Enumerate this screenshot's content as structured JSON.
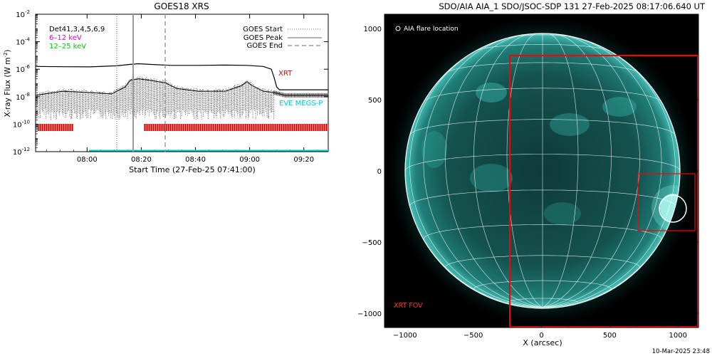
{
  "chart_data": [
    {
      "type": "line",
      "title": "GOES18 XRS",
      "xlabel": "Start Time (27-Feb-25 07:41:00)",
      "ylabel": "X-ray Flux (W m",
      "ylabel_sup": "-2",
      "ylabel_end": ")",
      "log_y": true,
      "xlim_minutes": [
        0,
        108
      ],
      "ylim_exponent": [
        -12,
        -2
      ],
      "x_ticks": [
        {
          "minute": 19,
          "label": "08:00"
        },
        {
          "minute": 39,
          "label": "08:20"
        },
        {
          "minute": 59,
          "label": "08:40"
        },
        {
          "minute": 79,
          "label": "09:00"
        },
        {
          "minute": 99,
          "label": "09:20"
        }
      ],
      "y_ticks": [
        {
          "exp": -2,
          "label": "10",
          "sup": "-2"
        },
        {
          "exp": -4,
          "label": "10",
          "sup": "-4"
        },
        {
          "exp": -6,
          "label": "10",
          "sup": "-6"
        },
        {
          "exp": -8,
          "label": "10",
          "sup": "-8"
        },
        {
          "exp": -10,
          "label": "10",
          "sup": "-10"
        },
        {
          "exp": -12,
          "label": "10",
          "sup": "-12"
        }
      ],
      "legend_left": [
        {
          "label": "Det41,3,4,5,6,9",
          "color": "#000000"
        },
        {
          "label": "6–12 keV",
          "color": "#dd00dd"
        },
        {
          "label": "12–25 keV",
          "color": "#00cc00"
        }
      ],
      "legend_right": [
        {
          "label": "GOES Start",
          "style": "dotted"
        },
        {
          "label": "GOES Peak",
          "style": "solid"
        },
        {
          "label": "GOES End",
          "style": "dashed"
        }
      ],
      "annotations": [
        {
          "label": "XRT",
          "color": "#dd0000"
        },
        {
          "label": "EVE MEGS-P",
          "color": "#00cccc"
        }
      ],
      "event_lines": [
        {
          "name": "GOES Start",
          "minute": 29.5
        },
        {
          "name": "GOES Peak",
          "minute": 37
        },
        {
          "name": "GOES End",
          "minute": 49
        }
      ],
      "series": [
        {
          "name": "GOES long channel",
          "color": "#000000",
          "points": [
            [
              0,
              -5.8
            ],
            [
              10,
              -5.82
            ],
            [
              20,
              -5.83
            ],
            [
              30,
              -5.75
            ],
            [
              35,
              -5.65
            ],
            [
              38,
              -5.6
            ],
            [
              42,
              -5.65
            ],
            [
              50,
              -5.72
            ],
            [
              60,
              -5.72
            ],
            [
              70,
              -5.7
            ],
            [
              78,
              -5.72
            ],
            [
              84,
              -5.8
            ],
            [
              87,
              -6.0
            ],
            [
              88,
              -6.6
            ],
            [
              89,
              -7.3
            ],
            [
              90,
              -7.5
            ],
            [
              100,
              -7.5
            ],
            [
              108,
              -7.5
            ]
          ]
        },
        {
          "name": "GOES short channel",
          "color": "#000000",
          "points": [
            [
              0,
              -7.9
            ],
            [
              10,
              -7.6
            ],
            [
              20,
              -7.7
            ],
            [
              28,
              -7.8
            ],
            [
              33,
              -7.3
            ],
            [
              35,
              -6.8
            ],
            [
              38,
              -6.7
            ],
            [
              42,
              -6.8
            ],
            [
              48,
              -7.0
            ],
            [
              52,
              -7.4
            ],
            [
              60,
              -7.6
            ],
            [
              70,
              -7.6
            ],
            [
              76,
              -7.2
            ],
            [
              78,
              -6.9
            ],
            [
              80,
              -7.2
            ],
            [
              84,
              -7.6
            ],
            [
              88,
              -7.7
            ],
            [
              92,
              -7.9
            ],
            [
              100,
              -7.9
            ],
            [
              108,
              -7.9
            ]
          ]
        }
      ],
      "xrt_coverage_minutes": [
        [
          0,
          19
        ],
        [
          39,
          108
        ]
      ]
    },
    {
      "type": "image",
      "title": "SDO/AIA AIA_1 SDO/JSOC-SDP 131 27-Feb-2025 08:17:06.640 UT",
      "xlabel": "X (arcsec)",
      "xlim": [
        -1150,
        1150
      ],
      "ylim": [
        -1100,
        1100
      ],
      "x_ticks": [
        -1000,
        -500,
        0,
        500,
        1000
      ],
      "y_ticks": [
        1000,
        500,
        0,
        -500,
        -1000
      ],
      "legend": "AIA flare location",
      "fov_label": "XRT FOV",
      "timestamp": "10-Mar-2025 23:48",
      "solar_radius_arcsec": 968,
      "xrt_fov": {
        "x": [
          -230,
          1150
        ],
        "y": [
          -1100,
          810
        ]
      },
      "zoom_box": {
        "x": [
          670,
          1070
        ],
        "y": [
          -420,
          -10
        ]
      },
      "flare_location": {
        "x": 920,
        "y": -280
      }
    }
  ]
}
